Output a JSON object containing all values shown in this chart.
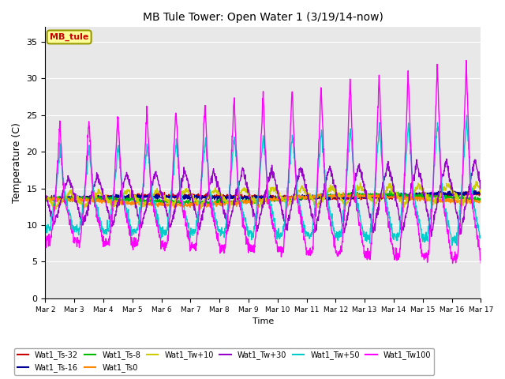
{
  "title": "MB Tule Tower: Open Water 1 (3/19/14-now)",
  "xlabel": "Time",
  "ylabel": "Temperature (C)",
  "ylim": [
    0,
    37
  ],
  "yticks": [
    0,
    5,
    10,
    15,
    20,
    25,
    30,
    35
  ],
  "background_color": "#ffffff",
  "plot_bg_color": "#e8e8e8",
  "legend_box_color": "#ffff99",
  "legend_box_edge": "#999900",
  "series_colors": {
    "Wat1_Ts-32": "#cc0000",
    "Wat1_Ts-16": "#000099",
    "Wat1_Ts-8": "#00bb00",
    "Wat1_Ts0": "#ff8800",
    "Wat1_Tw+10": "#cccc00",
    "Wat1_Tw+30": "#9900cc",
    "Wat1_Tw+50": "#00cccc",
    "Wat1_Tw100": "#ff00ff"
  },
  "figsize": [
    6.4,
    4.8
  ],
  "dpi": 100
}
